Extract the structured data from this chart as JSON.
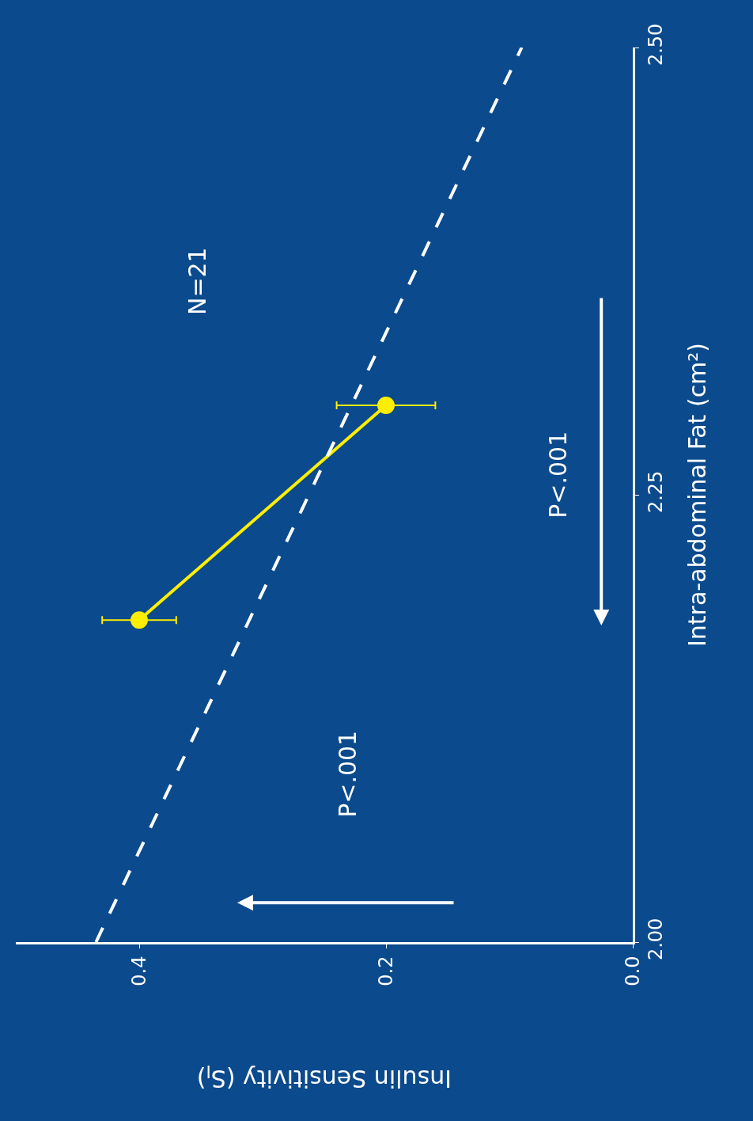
{
  "chart_data": {
    "type": "line",
    "xlabel": "Insulin Sensitivity (S$_{I}$)",
    "ylabel": "Intra-abdominal Fat (cm²)",
    "annotations": [
      "N=21",
      "P<.001",
      "P<.001"
    ],
    "series": [
      {
        "color": "#ffee00",
        "x": [
          0.4,
          0.2
        ],
        "values": [
          2.18,
          2.3
        ],
        "xerrors": [
          0.03,
          0.04
        ],
        "marker": "circle"
      },
      {
        "color": "#ffffff",
        "x": [
          0.435,
          0.09
        ],
        "values": [
          2.0,
          2.5
        ],
        "line_style": "dashed",
        "marker": "none"
      }
    ],
    "xlim": [
      0.5,
      0
    ],
    "xticks": [
      {
        "value": 0,
        "label": "0.0"
      },
      0.2,
      0.4
    ],
    "ylim": [
      2.0,
      2.5
    ],
    "yticks": [
      {
        "value": 2.0,
        "label": "2.00"
      },
      2.25,
      {
        "value": 2.5,
        "label": "2.50"
      }
    ]
  }
}
